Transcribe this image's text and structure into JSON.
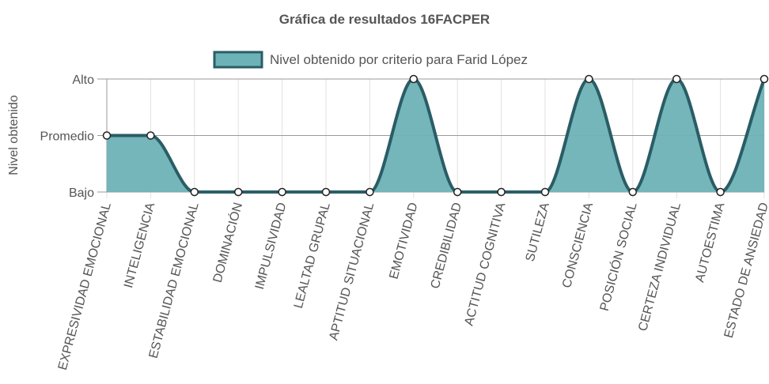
{
  "colors": {
    "line": "#2a5d66",
    "fill": "#6db2b6",
    "point_fill": "#ffffff",
    "text": "#555555"
  },
  "chart_data": {
    "type": "area",
    "title": "Gráfica de resultados 16FACPER",
    "ylabel": "Nivel obtenido",
    "xlabel": "",
    "y_ticks": [
      "Bajo",
      "Promedio",
      "Alto"
    ],
    "ylim": [
      0,
      2
    ],
    "legend_position": "top",
    "grid": true,
    "categories": [
      "EXPRESIVIDAD EMOCIONAL",
      "INTELIGENCIA",
      "ESTABILIDAD EMOCIONAL",
      "DOMINACIÓN",
      "IMPULSIVIDAD",
      "LEALTAD GRUPAL",
      "APTITUD SITUACIONAL",
      "EMOTIVIDAD",
      "CREDIBILIDAD",
      "ACTITUD COGNITIVA",
      "SUTILEZA",
      "CONSCIENCIA",
      "POSICIÓN SOCIAL",
      "CERTEZA INDIVIDUAL",
      "AUTOESTIMA",
      "ESTADO DE ANSIEDAD"
    ],
    "series": [
      {
        "name": "Nivel obtenido por criterio para Farid López",
        "values": [
          1,
          1,
          0,
          0,
          0,
          0,
          0,
          2,
          0,
          0,
          0,
          2,
          0,
          2,
          0,
          2
        ]
      }
    ]
  }
}
